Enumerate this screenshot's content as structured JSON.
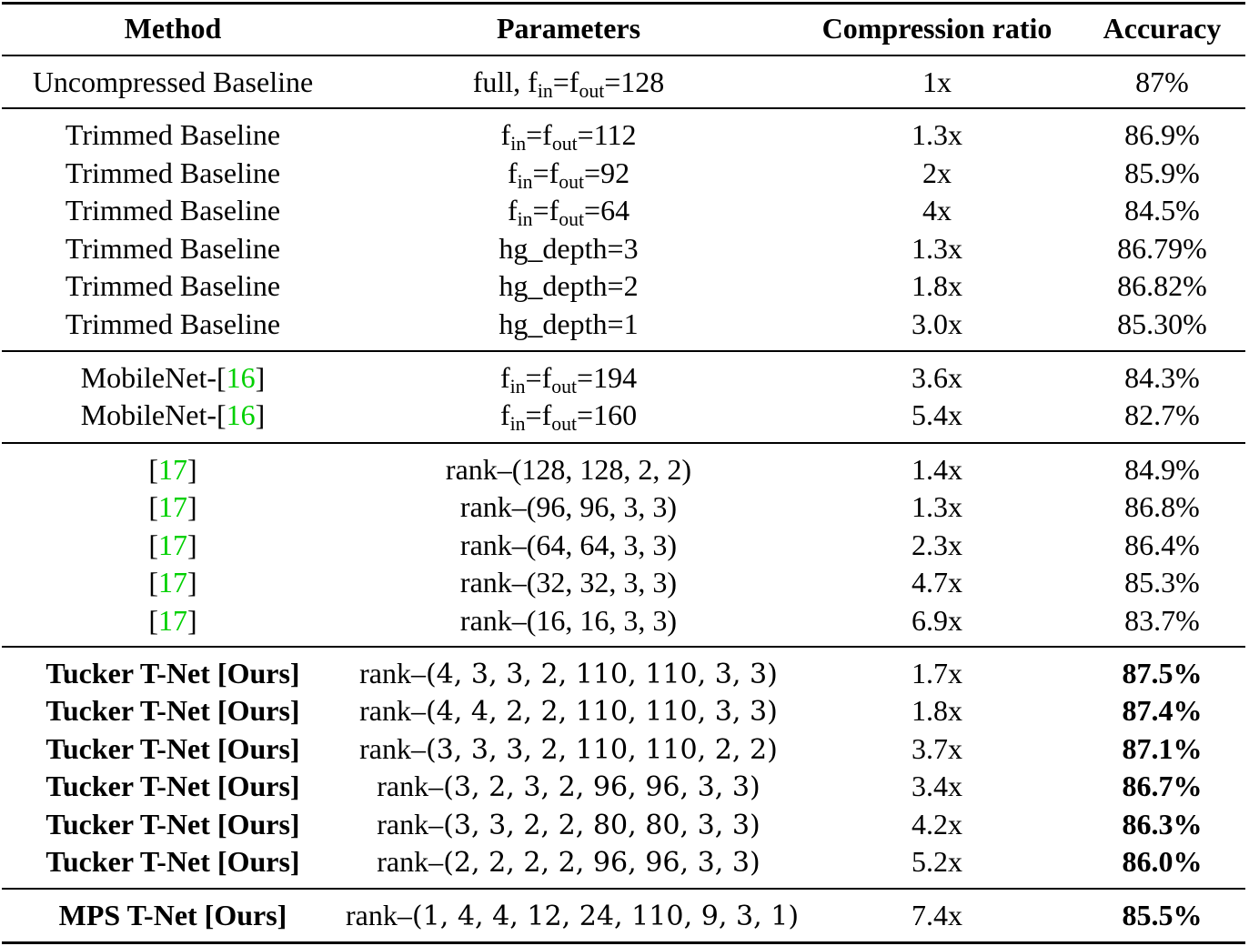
{
  "table": {
    "headers": {
      "method": "Method",
      "parameters": "Parameters",
      "ratio": "Compression ratio",
      "accuracy": "Accuracy"
    },
    "baseline": {
      "method": "Uncompressed Baseline",
      "param_prefix": "full, ",
      "param_value": "=128",
      "ratio": "1x",
      "accuracy": "87%"
    },
    "trimmed": [
      {
        "method": "Trimmed Baseline",
        "fvalue": "=112",
        "ratio": "1.3x",
        "accuracy": "86.9%"
      },
      {
        "method": "Trimmed Baseline",
        "fvalue": "=92",
        "ratio": "2x",
        "accuracy": "85.9%"
      },
      {
        "method": "Trimmed Baseline",
        "fvalue": "=64",
        "ratio": "4x",
        "accuracy": "84.5%"
      },
      {
        "method": "Trimmed Baseline",
        "param": "hg_depth=3",
        "ratio": "1.3x",
        "accuracy": "86.79%"
      },
      {
        "method": "Trimmed Baseline",
        "param": "hg_depth=2",
        "ratio": "1.8x",
        "accuracy": "86.82%"
      },
      {
        "method": "Trimmed Baseline",
        "param": "hg_depth=1",
        "ratio": "3.0x",
        "accuracy": "85.30%"
      }
    ],
    "mobilenet": [
      {
        "method": "MobileNet-[",
        "cite": "16",
        "close": "]",
        "fvalue": "=194",
        "ratio": "3.6x",
        "accuracy": "84.3%"
      },
      {
        "method": "MobileNet-[",
        "cite": "16",
        "close": "]",
        "fvalue": "=160",
        "ratio": "5.4x",
        "accuracy": "82.7%"
      }
    ],
    "ref17": [
      {
        "open": "[",
        "cite": "17",
        "close": "]",
        "param": "rank–(128, 128, 2, 2)",
        "ratio": "1.4x",
        "accuracy": "84.9%"
      },
      {
        "open": "[",
        "cite": "17",
        "close": "]",
        "param": "rank–(96, 96, 3, 3)",
        "ratio": "1.3x",
        "accuracy": "86.8%"
      },
      {
        "open": "[",
        "cite": "17",
        "close": "]",
        "param": "rank–(64, 64, 3, 3)",
        "ratio": "2.3x",
        "accuracy": "86.4%"
      },
      {
        "open": "[",
        "cite": "17",
        "close": "]",
        "param": "rank–(32, 32, 3, 3)",
        "ratio": "4.7x",
        "accuracy": "85.3%"
      },
      {
        "open": "[",
        "cite": "17",
        "close": "]",
        "param": "rank–(16, 16, 3, 3)",
        "ratio": "6.9x",
        "accuracy": "83.7%"
      }
    ],
    "tucker": [
      {
        "method": "Tucker T-Net [Ours]",
        "rank_prefix": "rank–",
        "rank": "(4, 3, 3, 2, 110, 110, 3, 3)",
        "ratio": "1.7x",
        "accuracy": "87.5%"
      },
      {
        "method": "Tucker T-Net [Ours]",
        "rank_prefix": "rank–",
        "rank": "(4, 4, 2, 2, 110, 110, 3, 3)",
        "ratio": "1.8x",
        "accuracy": "87.4%"
      },
      {
        "method": "Tucker T-Net [Ours]",
        "rank_prefix": "rank–",
        "rank": "(3, 3, 3, 2, 110, 110, 2, 2)",
        "ratio": "3.7x",
        "accuracy": "87.1%"
      },
      {
        "method": "Tucker T-Net [Ours]",
        "rank_prefix": "rank–",
        "rank": "(3, 2, 3, 2, 96, 96, 3, 3)",
        "ratio": "3.4x",
        "accuracy": "86.7%"
      },
      {
        "method": "Tucker T-Net [Ours]",
        "rank_prefix": "rank–",
        "rank": "(3, 3, 2, 2, 80, 80, 3, 3)",
        "ratio": "4.2x",
        "accuracy": "86.3%"
      },
      {
        "method": "Tucker T-Net [Ours]",
        "rank_prefix": "rank–",
        "rank": "(2, 2, 2, 2, 96, 96, 3, 3)",
        "ratio": "5.2x",
        "accuracy": "86.0%"
      }
    ],
    "mps": {
      "method": "MPS T-Net [Ours]",
      "rank_prefix": "rank–",
      "rank": "(1, 4, 4, 12, 24, 110, 9, 3, 1)",
      "ratio": "7.4x",
      "accuracy": "85.5%"
    },
    "f_symbol": "f",
    "sub_in": "in",
    "sub_out": "out",
    "equals": "="
  }
}
